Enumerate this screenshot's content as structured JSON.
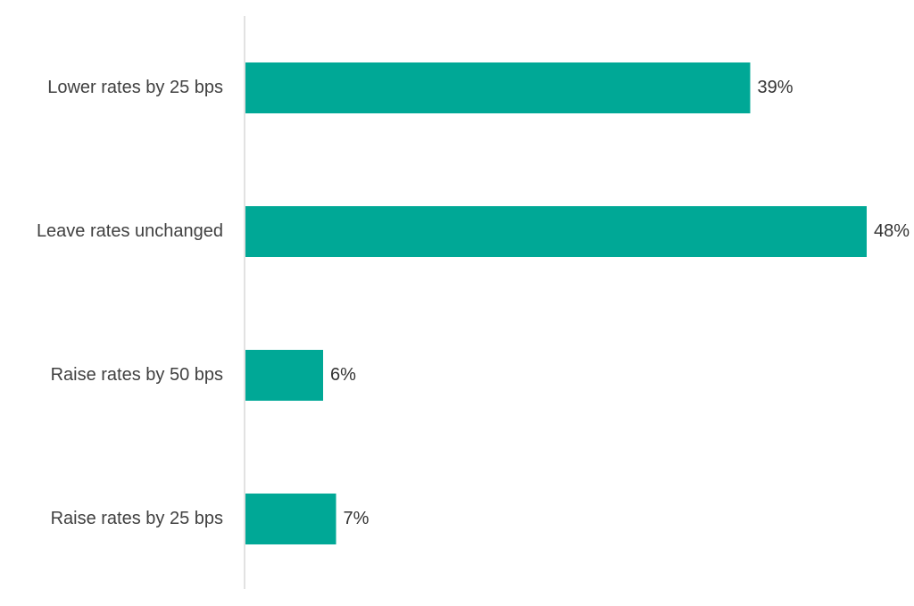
{
  "chart_data": {
    "type": "bar",
    "orientation": "horizontal",
    "categories": [
      "Lower rates by 25 bps",
      "Leave rates unchanged",
      "Raise rates by 50 bps",
      "Raise rates by 25 bps"
    ],
    "values": [
      39,
      48,
      6,
      7
    ],
    "value_labels": [
      "39%",
      "48%",
      "6%",
      "7%"
    ],
    "xlim": [
      0,
      48
    ],
    "grid": false,
    "legend": "none",
    "colors": {
      "bar": "#00A896",
      "axis": "#D9D9D9"
    }
  }
}
